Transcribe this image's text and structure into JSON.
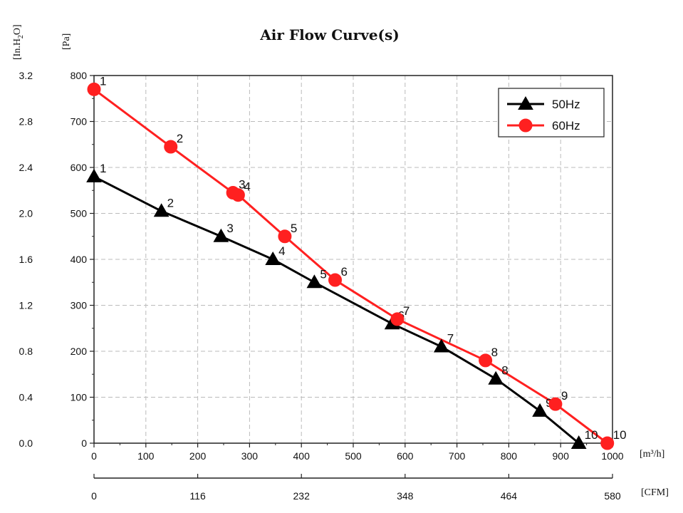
{
  "chart_data": {
    "type": "line",
    "title": "Air Flow Curve(s)",
    "left_axis_units": [
      "[In.H",
      "2",
      "O]"
    ],
    "pa_axis_unit": "[Pa]",
    "x_unit": "[m³/h]",
    "x2_unit": "[CFM]",
    "xlim": [
      0,
      1000
    ],
    "ylim": [
      0,
      800
    ],
    "x_ticks": [
      "0",
      "100",
      "200",
      "300",
      "400",
      "500",
      "600",
      "700",
      "800",
      "900",
      "1000"
    ],
    "x2_ticks": [
      "0",
      "116",
      "232",
      "348",
      "464",
      "580"
    ],
    "y_ticks_pa": [
      "0",
      "100",
      "200",
      "300",
      "400",
      "500",
      "600",
      "700",
      "800"
    ],
    "y_ticks_inh2o": [
      "0.0",
      "0.4",
      "0.8",
      "1.2",
      "1.6",
      "2.0",
      "2.4",
      "2.8",
      "3.2"
    ],
    "grid": true,
    "legend_position": "top-right",
    "series": [
      {
        "name": "50Hz",
        "color": "#000000",
        "marker": "triangle",
        "x": [
          0,
          130,
          245,
          345,
          425,
          575,
          670,
          775,
          860,
          935
        ],
        "y": [
          580,
          505,
          450,
          400,
          350,
          260,
          210,
          140,
          70,
          0
        ],
        "labels": [
          "1",
          "2",
          "3",
          "4",
          "5",
          "6",
          "7",
          "8",
          "9",
          "10"
        ]
      },
      {
        "name": "60Hz",
        "color": "#ff2020",
        "marker": "circle",
        "x": [
          0,
          148,
          268,
          278,
          368,
          465,
          585,
          755,
          890,
          990
        ],
        "y": [
          770,
          645,
          545,
          540,
          450,
          355,
          270,
          180,
          85,
          0
        ],
        "labels": [
          "1",
          "2",
          "3",
          "4",
          "5",
          "6",
          "7",
          "8",
          "9",
          "10"
        ]
      }
    ]
  }
}
